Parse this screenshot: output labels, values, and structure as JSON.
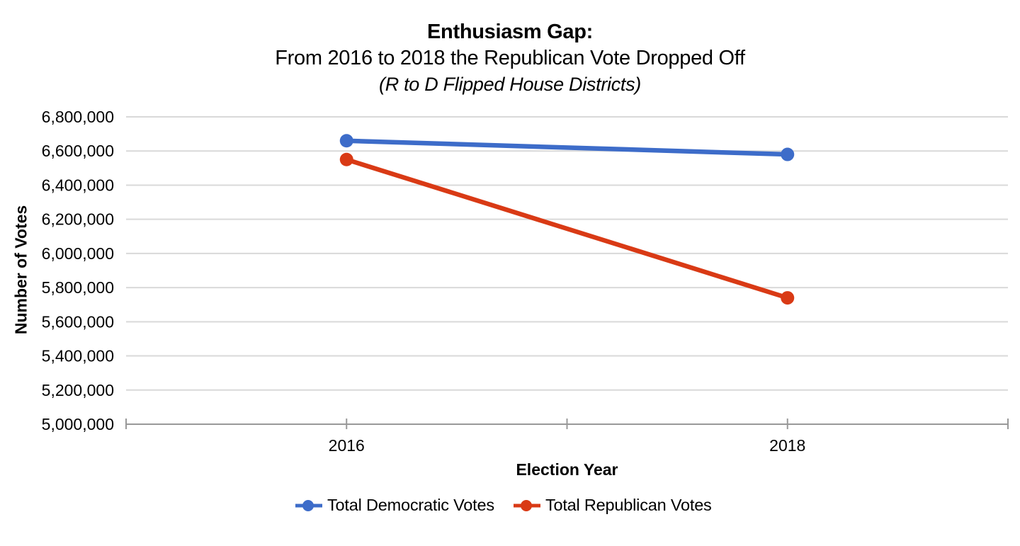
{
  "title": {
    "line1": "Enthusiasm Gap:",
    "line2": "From 2016 to 2018 the Republican Vote Dropped Off",
    "line3": "(R to D Flipped House Districts)"
  },
  "chart_data": {
    "type": "line",
    "categories": [
      "2016",
      "2018"
    ],
    "series": [
      {
        "name": "Total Democratic Votes",
        "color": "#3D6CC9",
        "values": [
          6660000,
          6580000
        ]
      },
      {
        "name": "Total Republican Votes",
        "color": "#D93A15",
        "values": [
          6550000,
          5740000
        ]
      }
    ],
    "xlabel": "Election Year",
    "ylabel": "Number of Votes",
    "ylim": [
      5000000,
      6800000
    ],
    "y_tick_step": 200000,
    "y_tick_labels": [
      "5,000,000",
      "5,200,000",
      "5,400,000",
      "5,600,000",
      "5,800,000",
      "6,000,000",
      "6,200,000",
      "6,400,000",
      "6,600,000",
      "6,800,000"
    ],
    "grid": true,
    "legend_position": "bottom",
    "marker": "circle"
  },
  "colors": {
    "gridline": "#d9d9d9",
    "axis": "#999999",
    "text": "#000000",
    "background": "#ffffff"
  }
}
